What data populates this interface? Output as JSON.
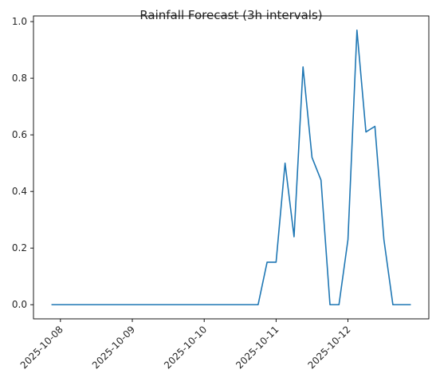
{
  "chart_data": {
    "type": "line",
    "title": "Rainfall Forecast (3h intervals)",
    "xlabel": "",
    "ylabel": "",
    "x_start": "2025-10-07 21:00",
    "x_interval_hours": 3,
    "series": [
      {
        "color": "#1f77b4",
        "values": [
          0,
          0,
          0,
          0,
          0,
          0,
          0,
          0,
          0,
          0,
          0,
          0,
          0,
          0,
          0,
          0,
          0,
          0,
          0,
          0,
          0,
          0,
          0,
          0,
          0.15,
          0.15,
          0.5,
          0.24,
          0.84,
          0.52,
          0.44,
          0,
          0,
          0.23,
          0.97,
          0.61,
          0.63,
          0.23,
          0,
          0,
          0
        ]
      }
    ],
    "x_ticks": [
      "2025-10-08",
      "2025-10-09",
      "2025-10-10",
      "2025-10-11",
      "2025-10-12"
    ],
    "y_ticks": [
      "0.0",
      "0.2",
      "0.4",
      "0.6",
      "0.8",
      "1.0"
    ],
    "xlim": [
      "2025-10-07 15:00",
      "2025-10-13 03:00"
    ],
    "ylim": [
      -0.05,
      1.02
    ],
    "grid": false,
    "legend": "none"
  }
}
